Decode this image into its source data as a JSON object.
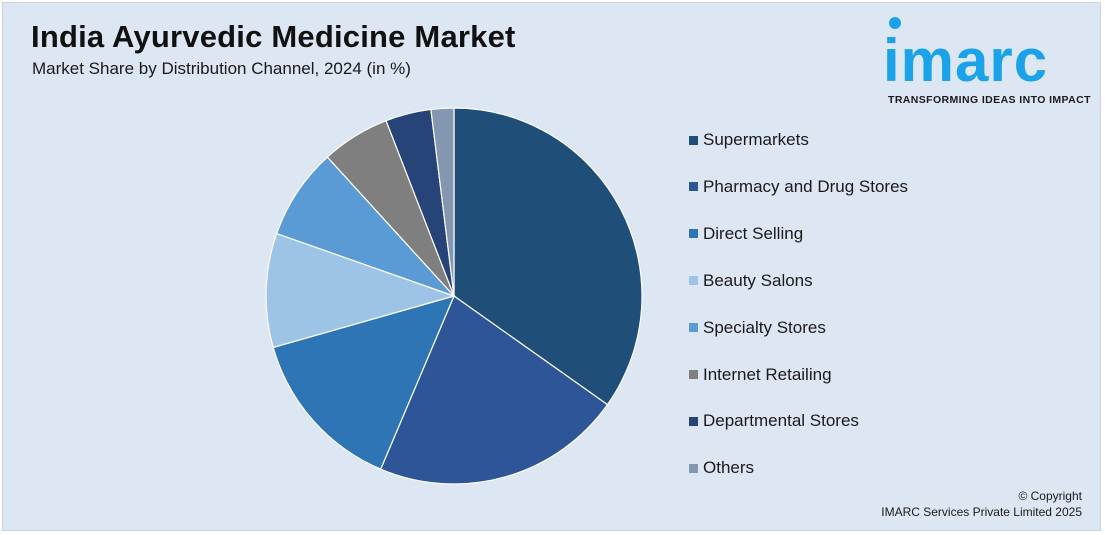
{
  "title": "India Ayurvedic Medicine Market",
  "subtitle": "Market Share by Distribution Channel, 2024 (in %)",
  "logo": {
    "word": "imarc",
    "tagline": "TRANSFORMING IDEAS INTO IMPACT",
    "color": "#1aa3e8"
  },
  "copyright": {
    "line1": "© Copyright",
    "line2": "IMARC Services Private Limited 2025"
  },
  "chart_data": {
    "type": "pie",
    "title": "India Ayurvedic Medicine Market",
    "subtitle": "Market Share by Distribution Channel, 2024 (in %)",
    "legend_position": "right",
    "slices": [
      {
        "label": "Supermarkets",
        "value": 35.5,
        "color": "#1f4e79"
      },
      {
        "label": "Pharmacy and Drug Stores",
        "value": 22.0,
        "color": "#2e5597"
      },
      {
        "label": "Direct Selling",
        "value": 14.5,
        "color": "#2e75b6"
      },
      {
        "label": "Beauty Salons",
        "value": 10.0,
        "color": "#9dc3e6"
      },
      {
        "label": "Specialty Stores",
        "value": 8.0,
        "color": "#5b9bd5"
      },
      {
        "label": "Internet Retailing",
        "value": 6.0,
        "color": "#7f7f7f"
      },
      {
        "label": "Departmental Stores",
        "value": 4.0,
        "color": "#264478"
      },
      {
        "label": "Others",
        "value": 2.0,
        "color": "#8497b0"
      }
    ]
  }
}
